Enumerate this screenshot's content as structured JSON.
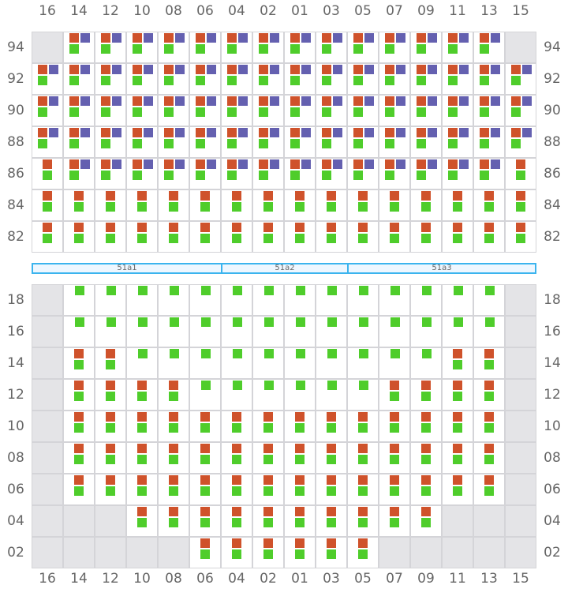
{
  "columns": [
    "16",
    "14",
    "12",
    "10",
    "08",
    "06",
    "04",
    "02",
    "01",
    "03",
    "05",
    "07",
    "09",
    "11",
    "13",
    "15"
  ],
  "colors": {
    "orange": "#cf522b",
    "purple": "#6460b0",
    "green": "#4fcd2b",
    "disabled": "#e4e4e7",
    "section_border": "#3bb4ee"
  },
  "legend_codes": {
    "x": "unavailable",
    "3": "orange+purple+green",
    "2": "orange+green",
    "1": "green"
  },
  "upper_block": {
    "rows": [
      {
        "label": "94",
        "cells": "x33333333333333x"
      },
      {
        "label": "92",
        "cells": "3333333333333333"
      },
      {
        "label": "90",
        "cells": "3333333333333333"
      },
      {
        "label": "88",
        "cells": "3333333333333333"
      },
      {
        "label": "86",
        "cells": "2333333333333332"
      },
      {
        "label": "84",
        "cells": "2222222222222222"
      },
      {
        "label": "82",
        "cells": "2222222222222222"
      }
    ]
  },
  "sections": [
    {
      "label": "51a1",
      "span": 6
    },
    {
      "label": "51a2",
      "span": 4
    },
    {
      "label": "51a3",
      "span": 6
    }
  ],
  "lower_block": {
    "rows": [
      {
        "label": "18",
        "cells": "x11111111111111x"
      },
      {
        "label": "16",
        "cells": "x11111111111111x"
      },
      {
        "label": "14",
        "cells": "x22111111111122x"
      },
      {
        "label": "12",
        "cells": "x22221111112222x"
      },
      {
        "label": "10",
        "cells": "x22222222222222x"
      },
      {
        "label": "08",
        "cells": "x22222222222222x"
      },
      {
        "label": "06",
        "cells": "x22222222222222x"
      },
      {
        "label": "04",
        "cells": "xxx2222222222xxx"
      },
      {
        "label": "02",
        "cells": "xxxxx222222xxxxx"
      }
    ]
  }
}
